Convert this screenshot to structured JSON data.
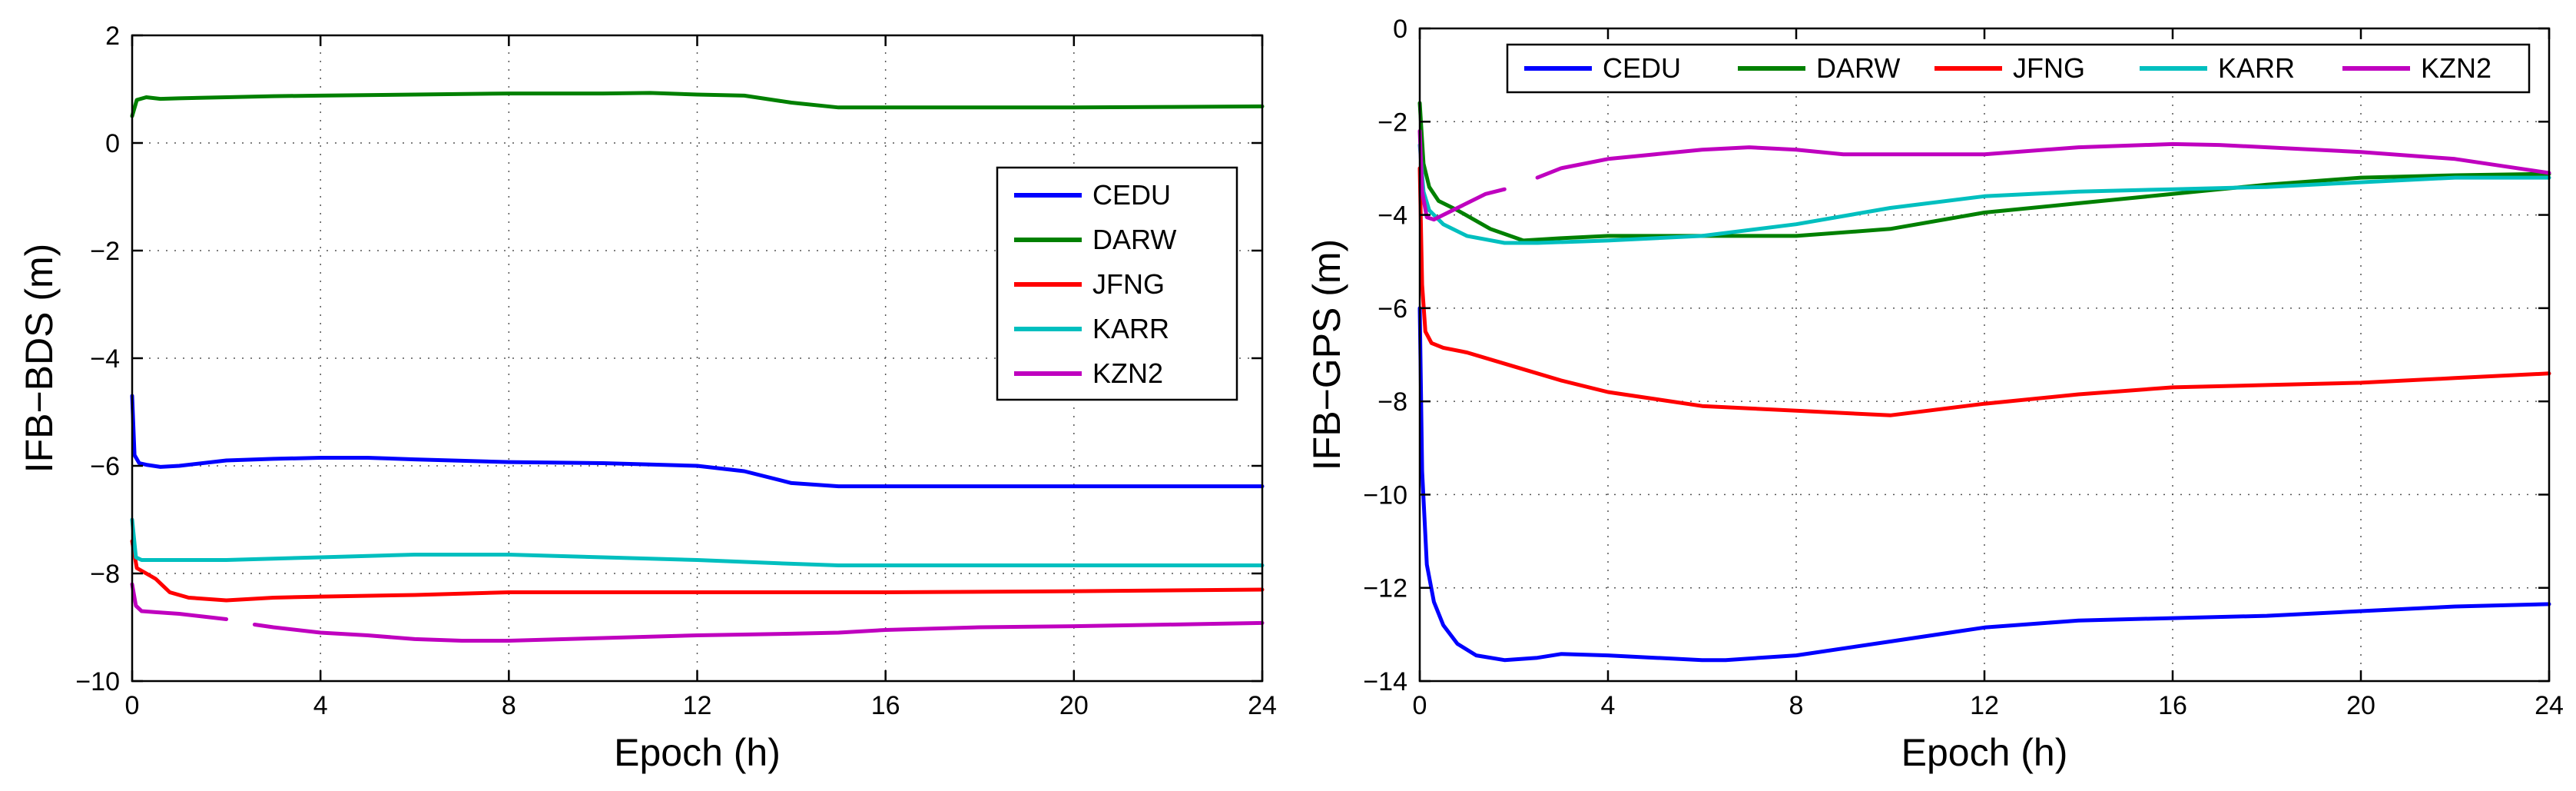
{
  "legend_order": [
    "CEDU",
    "DARW",
    "JFNG",
    "KARR",
    "KZN2"
  ],
  "colors": {
    "CEDU": "#0000ff",
    "DARW": "#008000",
    "JFNG": "#ff0000",
    "KARR": "#00bfbf",
    "KZN2": "#bf00bf",
    "grid": "#555555",
    "axes": "#000000"
  },
  "chart_data": [
    {
      "type": "line",
      "title": "",
      "xlabel": "Epoch (h)",
      "ylabel": "IFB−BDS (m)",
      "xlim": [
        0,
        24
      ],
      "ylim": [
        -10,
        2
      ],
      "xticks": [
        0,
        4,
        8,
        12,
        16,
        20,
        24
      ],
      "yticks": [
        -10,
        -8,
        -6,
        -4,
        -2,
        0,
        2
      ],
      "grid": true,
      "legend_position": "right",
      "legend_layout": "vertical",
      "series": [
        {
          "name": "CEDU",
          "x": [
            0,
            0.05,
            0.15,
            0.3,
            0.6,
            1,
            2,
            3,
            4,
            5,
            6,
            8,
            10,
            12,
            13,
            14,
            15,
            16,
            18,
            20,
            22,
            24
          ],
          "y": [
            -4.7,
            -5.8,
            -5.95,
            -5.98,
            -6.02,
            -6.0,
            -5.9,
            -5.87,
            -5.85,
            -5.85,
            -5.88,
            -5.93,
            -5.95,
            -6.0,
            -6.1,
            -6.32,
            -6.38,
            -6.38,
            -6.38,
            -6.38,
            -6.38,
            -6.38
          ]
        },
        {
          "name": "DARW",
          "x": [
            0,
            0.1,
            0.3,
            0.6,
            1,
            2,
            3,
            4,
            6,
            8,
            10,
            11,
            12,
            13,
            14,
            15,
            16,
            18,
            20,
            22,
            24
          ],
          "y": [
            0.5,
            0.8,
            0.85,
            0.82,
            0.83,
            0.85,
            0.87,
            0.88,
            0.9,
            0.92,
            0.92,
            0.93,
            0.9,
            0.88,
            0.75,
            0.66,
            0.66,
            0.66,
            0.66,
            0.67,
            0.68
          ]
        },
        {
          "name": "JFNG",
          "x": [
            0,
            0.1,
            0.3,
            0.5,
            0.8,
            1.2,
            2,
            3,
            4,
            6,
            8,
            12,
            16,
            20,
            24
          ],
          "y": [
            -7.4,
            -7.9,
            -8.0,
            -8.1,
            -8.35,
            -8.45,
            -8.5,
            -8.45,
            -8.43,
            -8.4,
            -8.35,
            -8.35,
            -8.35,
            -8.33,
            -8.3
          ]
        },
        {
          "name": "KARR",
          "x": [
            0,
            0.08,
            0.2,
            0.5,
            1,
            2,
            4,
            6,
            8,
            10,
            12,
            14,
            15,
            16,
            18,
            20,
            24
          ],
          "y": [
            -7.0,
            -7.7,
            -7.75,
            -7.75,
            -7.75,
            -7.75,
            -7.7,
            -7.65,
            -7.65,
            -7.7,
            -7.75,
            -7.82,
            -7.85,
            -7.85,
            -7.85,
            -7.85,
            -7.85
          ]
        },
        {
          "name": "KZN2",
          "x": [
            0,
            0.08,
            0.2,
            0.5,
            1,
            1.5,
            2,
            null,
            2.6,
            3,
            4,
            5,
            6,
            7,
            8,
            10,
            12,
            14,
            15,
            16,
            18,
            20,
            22,
            24
          ],
          "y": [
            -8.2,
            -8.6,
            -8.7,
            -8.72,
            -8.75,
            -8.8,
            -8.85,
            null,
            -8.95,
            -9.0,
            -9.1,
            -9.15,
            -9.22,
            -9.25,
            -9.25,
            -9.2,
            -9.15,
            -9.12,
            -9.1,
            -9.05,
            -9.0,
            -8.98,
            -8.95,
            -8.92
          ]
        }
      ]
    },
    {
      "type": "line",
      "title": "",
      "xlabel": "Epoch (h)",
      "ylabel": "IFB−GPS (m)",
      "xlim": [
        0,
        24
      ],
      "ylim": [
        -14,
        0
      ],
      "xticks": [
        0,
        4,
        8,
        12,
        16,
        20,
        24
      ],
      "yticks": [
        -14,
        -12,
        -10,
        -8,
        -6,
        -4,
        -2,
        0
      ],
      "grid": true,
      "legend_position": "top",
      "legend_layout": "horizontal",
      "series": [
        {
          "name": "CEDU",
          "x": [
            0,
            0.05,
            0.15,
            0.3,
            0.5,
            0.8,
            1.2,
            1.8,
            2.5,
            3,
            4,
            5,
            6,
            6.5,
            8,
            10,
            12,
            14,
            16,
            18,
            20,
            22,
            24
          ],
          "y": [
            -6.0,
            -9.5,
            -11.5,
            -12.3,
            -12.8,
            -13.2,
            -13.45,
            -13.55,
            -13.5,
            -13.42,
            -13.45,
            -13.5,
            -13.55,
            -13.55,
            -13.45,
            -13.15,
            -12.85,
            -12.7,
            -12.65,
            -12.6,
            -12.5,
            -12.4,
            -12.35
          ]
        },
        {
          "name": "DARW",
          "x": [
            0,
            0.08,
            0.2,
            0.4,
            0.8,
            1.5,
            2.2,
            3,
            4,
            5,
            6,
            8,
            10,
            12,
            14,
            16,
            18,
            20,
            22,
            24
          ],
          "y": [
            -1.6,
            -2.9,
            -3.4,
            -3.7,
            -3.9,
            -4.3,
            -4.55,
            -4.5,
            -4.45,
            -4.45,
            -4.45,
            -4.45,
            -4.3,
            -3.95,
            -3.75,
            -3.55,
            -3.35,
            -3.2,
            -3.15,
            -3.12
          ]
        },
        {
          "name": "JFNG",
          "x": [
            0,
            0.05,
            0.12,
            0.25,
            0.5,
            1,
            2,
            3,
            4,
            6,
            8,
            10,
            12,
            14,
            16,
            18,
            20,
            22,
            24
          ],
          "y": [
            -3.0,
            -5.5,
            -6.5,
            -6.75,
            -6.85,
            -6.95,
            -7.25,
            -7.55,
            -7.8,
            -8.1,
            -8.2,
            -8.3,
            -8.05,
            -7.85,
            -7.7,
            -7.65,
            -7.6,
            -7.5,
            -7.4
          ]
        },
        {
          "name": "KARR",
          "x": [
            0,
            0.08,
            0.2,
            0.5,
            1,
            1.8,
            2.5,
            4,
            6,
            8,
            10,
            12,
            14,
            16,
            18,
            20,
            22,
            24
          ],
          "y": [
            -2.5,
            -3.5,
            -3.9,
            -4.2,
            -4.45,
            -4.6,
            -4.6,
            -4.55,
            -4.45,
            -4.2,
            -3.85,
            -3.6,
            -3.5,
            -3.45,
            -3.4,
            -3.3,
            -3.2,
            -3.2
          ]
        },
        {
          "name": "KZN2",
          "x": [
            0,
            0.05,
            0.15,
            0.3,
            0.6,
            1,
            1.4,
            1.8,
            null,
            2.5,
            3,
            4,
            5,
            6,
            7,
            8,
            9,
            10,
            12,
            14,
            16,
            17,
            18,
            20,
            22,
            24
          ],
          "y": [
            -2.2,
            -3.5,
            -4.05,
            -4.1,
            -3.95,
            -3.75,
            -3.55,
            -3.45,
            null,
            -3.2,
            -3.0,
            -2.8,
            -2.7,
            -2.6,
            -2.55,
            -2.6,
            -2.7,
            -2.7,
            -2.7,
            -2.55,
            -2.48,
            -2.5,
            -2.55,
            -2.65,
            -2.8,
            -3.1
          ]
        }
      ]
    }
  ]
}
